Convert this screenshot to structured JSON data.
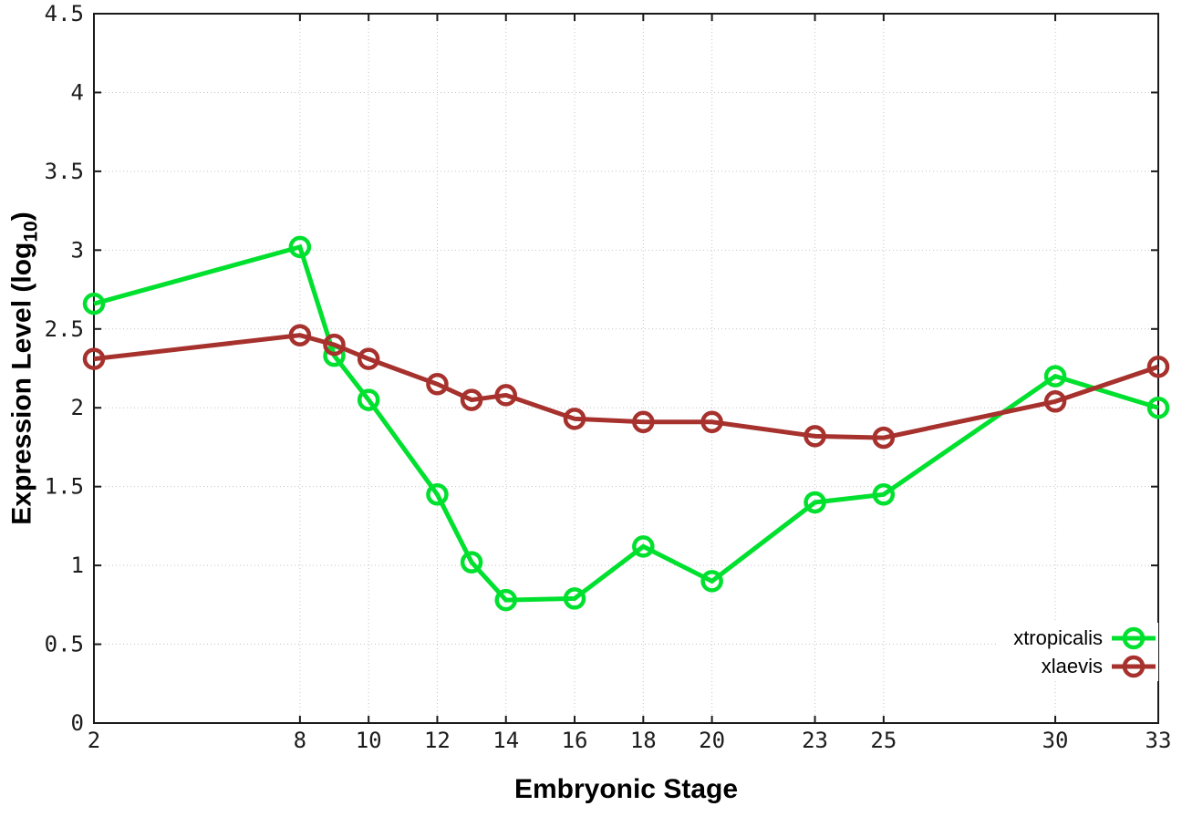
{
  "chart_data": {
    "type": "line",
    "title": "",
    "xlabel": "Embryonic Stage",
    "ylabel": "Expression Level (log10)",
    "ylabel_parts": {
      "pre": "Expression Level (log",
      "sub": "10",
      "post": ")"
    },
    "x": [
      2,
      8,
      9,
      10,
      12,
      13,
      14,
      16,
      18,
      20,
      23,
      25,
      30,
      33
    ],
    "series": [
      {
        "name": "xtropicalis",
        "color": "#00e02e",
        "values": [
          2.66,
          3.02,
          2.33,
          2.05,
          1.45,
          1.02,
          0.78,
          0.79,
          1.12,
          0.9,
          1.4,
          1.45,
          2.2,
          2.0
        ]
      },
      {
        "name": "xlaevis",
        "color": "#a6312d",
        "values": [
          2.31,
          2.46,
          2.4,
          2.31,
          2.15,
          2.05,
          2.08,
          1.93,
          1.91,
          1.91,
          1.82,
          1.81,
          2.04,
          2.26
        ]
      }
    ],
    "xlim": [
      2,
      33
    ],
    "ylim": [
      0,
      4.5
    ],
    "xticks": [
      2,
      8,
      10,
      12,
      14,
      16,
      18,
      20,
      23,
      25,
      30,
      33
    ],
    "xtick_labels": [
      "2",
      "8",
      "10",
      "12",
      "14",
      "16",
      "18",
      "20",
      "23",
      "25",
      "30",
      "33"
    ],
    "yticks": [
      0,
      0.5,
      1,
      1.5,
      2,
      2.5,
      3,
      3.5,
      4,
      4.5
    ],
    "ytick_labels": [
      "0",
      "0.5",
      "1",
      "1.5",
      "2",
      "2.5",
      "3",
      "3.5",
      "4",
      "4.5"
    ],
    "grid": true,
    "legend_position": "bottom-right",
    "marker": "open-circle",
    "axis_color": "#1a1a1a",
    "grid_color": "#c4c4c4"
  }
}
